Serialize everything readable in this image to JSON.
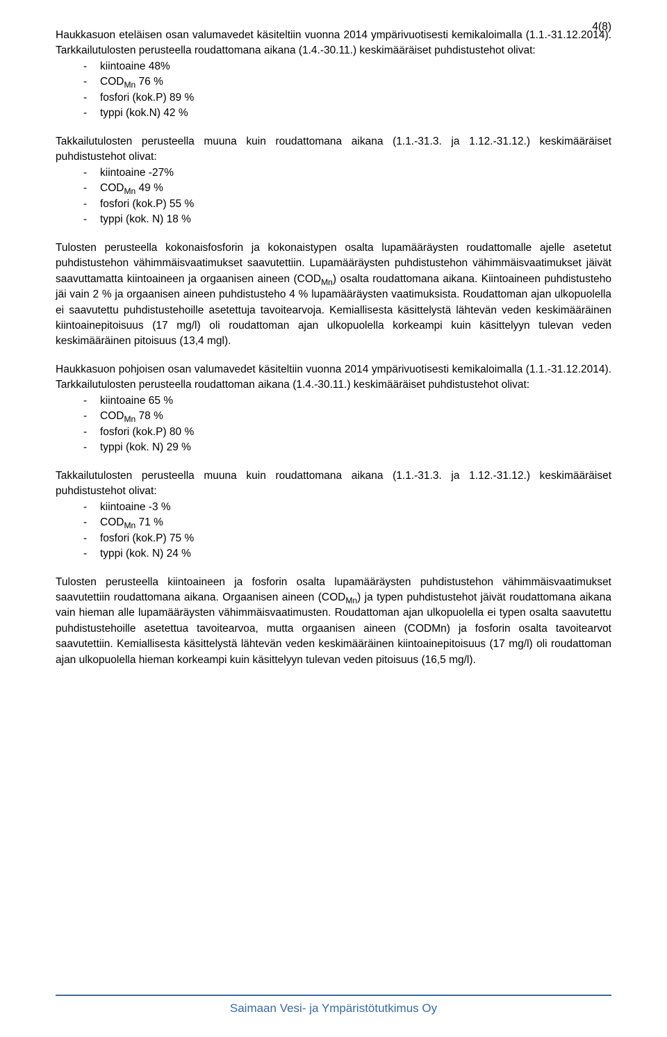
{
  "pageNumber": "4(8)",
  "para1": "Haukkasuon eteläisen osan valumavedet käsiteltiin vuonna 2014 ympärivuotisesti kemikaloimalla (1.1.-31.12.2014). Tarkkailutulosten perusteella roudattomana aikana (1.4.-30.11.) keskimääräiset puhdistustehot olivat:",
  "list1": {
    "i0": "kiintoaine 48%",
    "i1_pre": "COD",
    "i1_sub": "Mn",
    "i1_post": " 76 %",
    "i2": "fosfori (kok.P) 89 %",
    "i3": "typpi (kok.N) 42 %"
  },
  "para2": "Takkailutulosten perusteella muuna kuin roudattomana aikana (1.1.-31.3. ja 1.12.-31.12.) keskimääräiset puhdistustehot olivat:",
  "list2": {
    "i0": "kiintoaine -27%",
    "i1_pre": "COD",
    "i1_sub": "Mn",
    "i1_post": " 49 %",
    "i2": "fosfori (kok.P) 55 %",
    "i3": "typpi (kok. N) 18 %"
  },
  "para3_a": "Tulosten perusteella kokonaisfosforin ja kokonaistypen osalta lupamääräysten roudattomalle ajelle asetetut puhdistustehon vähimmäisvaatimukset saavutettiin. Lupamääräysten puhdistustehon vähimmäisvaatimukset jäivät saavuttamatta kiintoaineen ja orgaanisen aineen (COD",
  "para3_sub": "Mn",
  "para3_b": ") osalta roudattomana aikana. Kiintoaineen puhdistusteho jäi vain 2 % ja orgaanisen aineen puhdistusteho 4 % lupamääräysten vaatimuksista. Roudattoman ajan ulkopuolella ei saavutettu puhdistustehoille asetettuja tavoitearvoja. Kemiallisesta käsittelystä lähtevän veden keskimääräinen kiintoainepitoisuus (17 mg/l) oli roudattoman ajan ulkopuolella korkeampi kuin käsittelyyn tulevan veden keskimääräinen pitoisuus (13,4 mgl).",
  "para4": "Haukkasuon pohjoisen osan valumavedet käsiteltiin vuonna 2014 ympärivuotisesti kemikaloimalla (1.1.-31.12.2014). Tarkkailutulosten perusteella roudattoman aikana (1.4.-30.11.) keskimääräiset puhdistustehot olivat:",
  "list3": {
    "i0": "kiintoaine 65 %",
    "i1_pre": "COD",
    "i1_sub": "Mn",
    "i1_post": " 78 %",
    "i2": "fosfori (kok.P) 80 %",
    "i3": "typpi (kok. N) 29 %"
  },
  "para5": "Takkailutulosten perusteella muuna kuin roudattomana aikana (1.1.-31.3. ja 1.12.-31.12.) keskimääräiset puhdistustehot olivat:",
  "list4": {
    "i0": "kiintoaine -3 %",
    "i1_pre": "COD",
    "i1_sub": "Mn",
    "i1_post": " 71 %",
    "i2": "fosfori (kok.P) 75 %",
    "i3": "typpi (kok. N) 24 %"
  },
  "para6_a": "Tulosten perusteella kiintoaineen ja fosforin osalta lupamääräysten puhdistustehon vähimmäisvaatimukset saavutettiin roudattomana aikana. Orgaanisen aineen (COD",
  "para6_sub": "Mn",
  "para6_b": ") ja typen puhdistustehot jäivät roudattomana aikana vain hieman alle lupamääräysten vähimmäisvaatimusten. Roudattoman ajan ulkopuolella ei typen osalta saavutettu puhdistustehoille asetettua tavoitearvoa, mutta orgaanisen aineen (CODMn) ja fosforin osalta tavoitearvot saavutettiin. Kemiallisesta käsittelystä lähtevän veden keskimääräinen kiintoainepitoisuus (17 mg/l) oli roudattoman ajan ulkopuolella hieman korkeampi kuin käsittelyyn tulevan veden pitoisuus (16,5 mg/l).",
  "footer": "Saimaan Vesi- ja Ympäristötutkimus Oy",
  "colors": {
    "text": "#000000",
    "footer": "#3a6aa0",
    "background": "#ffffff"
  }
}
